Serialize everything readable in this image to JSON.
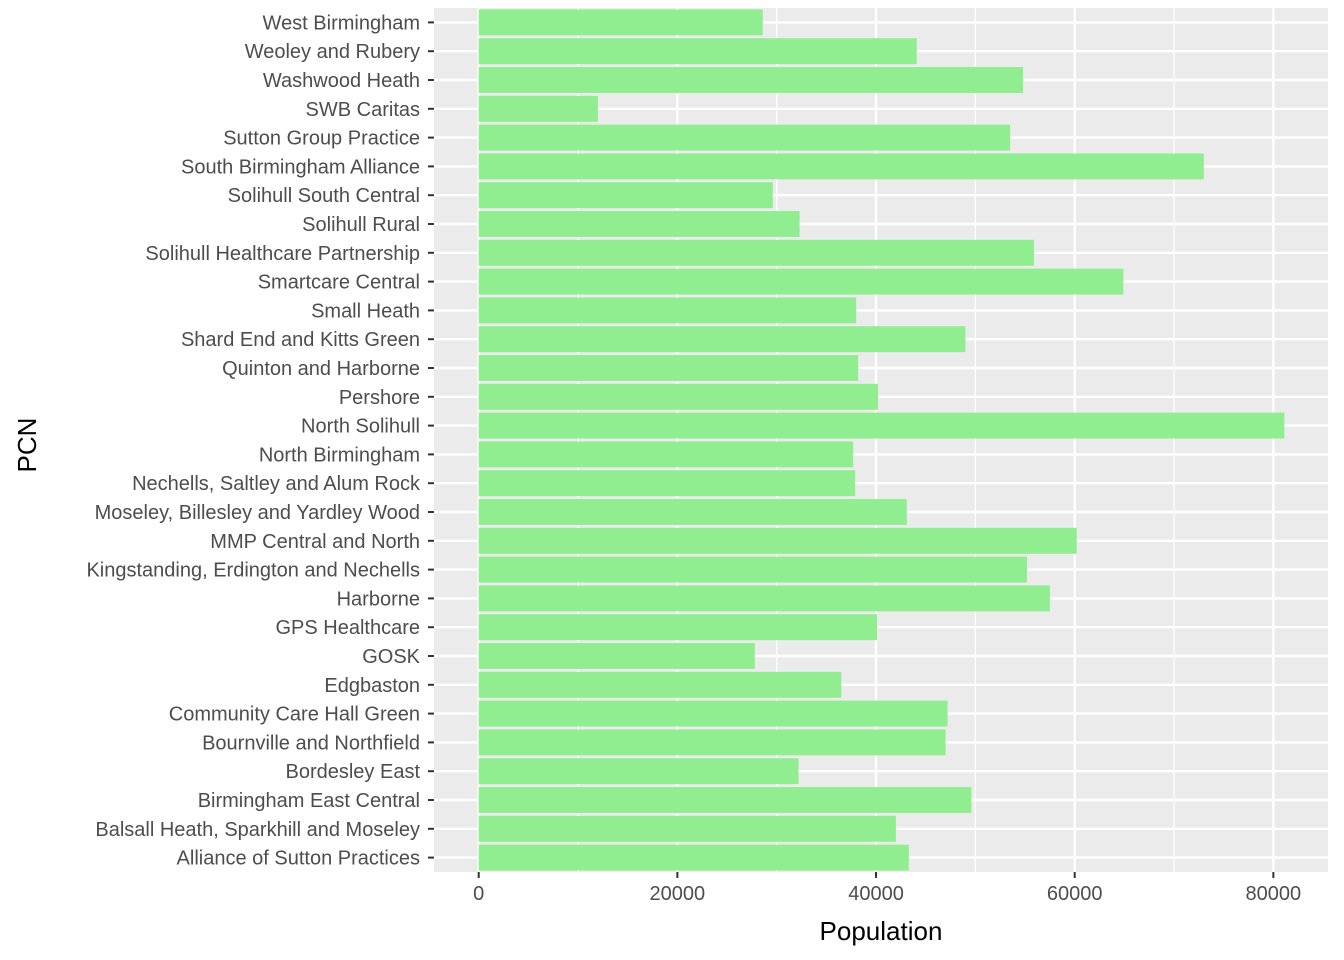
{
  "chart_data": {
    "type": "bar",
    "orientation": "horizontal",
    "title": "",
    "xlabel": "Population",
    "ylabel": "PCN",
    "xlim": [
      -4500,
      85500
    ],
    "x_ticks": [
      0,
      20000,
      40000,
      60000,
      80000
    ],
    "grid": true,
    "bar_color": "#90ee90",
    "panel_color": "#ebebeb",
    "categories": [
      "Alliance of Sutton Practices",
      "Balsall Heath, Sparkhill and Moseley",
      "Birmingham East Central",
      "Bordesley East",
      "Bournville and Northfield",
      "Community Care Hall Green",
      "Edgbaston",
      "GOSK",
      "GPS Healthcare",
      "Harborne",
      "Kingstanding, Erdington and Nechells",
      "MMP Central and North",
      "Moseley, Billesley and Yardley Wood",
      "Nechells, Saltley and Alum Rock",
      "North Birmingham",
      "North Solihull",
      "Pershore",
      "Quinton and Harborne",
      "Shard End and Kitts Green",
      "Small Heath",
      "Smartcare Central",
      "Solihull Healthcare Partnership",
      "Solihull Rural",
      "Solihull South Central",
      "South Birmingham Alliance",
      "Sutton Group Practice",
      "SWB Caritas",
      "Washwood Heath",
      "Weoley and Rubery",
      "West Birmingham"
    ],
    "values": [
      43300,
      42000,
      49600,
      32200,
      47000,
      47200,
      36500,
      27800,
      40100,
      57500,
      55200,
      60200,
      43100,
      37900,
      37700,
      81100,
      40200,
      38200,
      49000,
      38000,
      64900,
      55900,
      32300,
      29600,
      73000,
      53500,
      12000,
      54800,
      44100,
      28600
    ]
  }
}
